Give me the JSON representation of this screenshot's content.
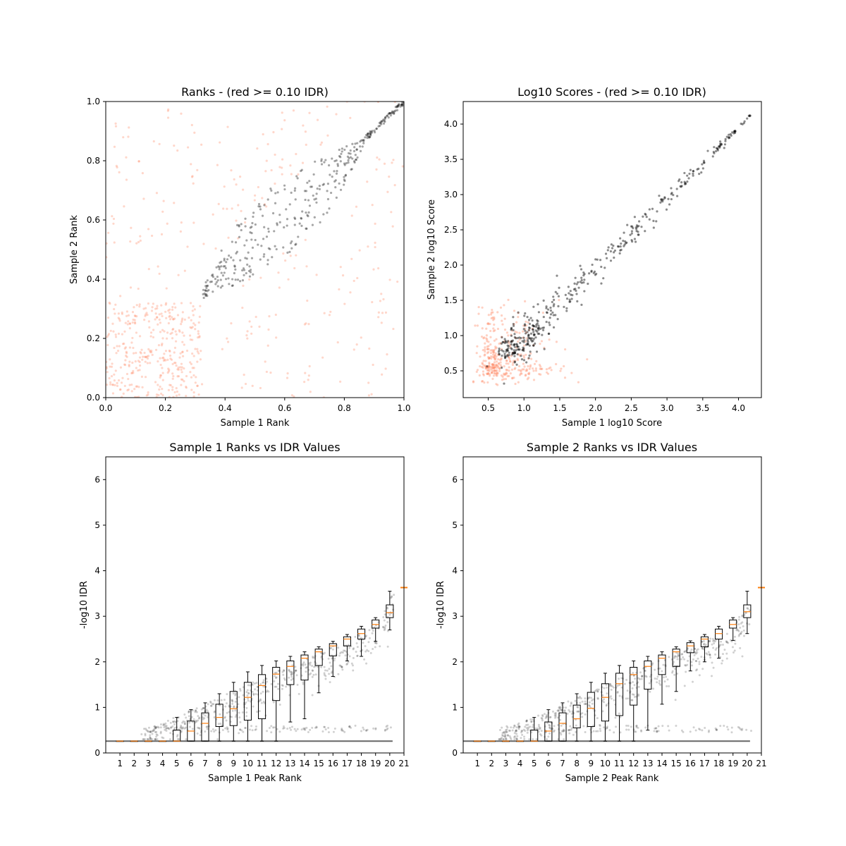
{
  "colors": {
    "pass": "#000000",
    "fail": "#ff8c69",
    "median": "#ff7f0e"
  },
  "chart_data": [
    {
      "type": "scatter",
      "title": "Ranks - (red >= 0.10 IDR)",
      "xlabel": "Sample 1 Rank",
      "ylabel": "Sample 2 Rank",
      "xlim": [
        0,
        1
      ],
      "ylim": [
        0,
        1
      ],
      "xticks": [
        "0.0",
        "0.2",
        "0.4",
        "0.6",
        "0.8",
        "1.0"
      ],
      "yticks": [
        "0.0",
        "0.2",
        "0.4",
        "0.6",
        "0.8",
        "1.0"
      ],
      "grid": false,
      "series": [
        {
          "color": "black",
          "cloud": {
            "shape": "wedge",
            "from": [
              0.32,
              0.33
            ],
            "to": [
              1.0,
              1.0
            ],
            "spread": 0.27,
            "count": 360
          }
        },
        {
          "color": "salmon",
          "cloud": {
            "shape": "background",
            "dense_region": [
              [
                0,
                0.3
              ],
              [
                0,
                0.3
              ]
            ],
            "count": 620
          }
        }
      ]
    },
    {
      "type": "scatter",
      "title": "Log10 Scores - (red >= 0.10 IDR)",
      "xlabel": "Sample 1 log10 Score",
      "ylabel": "Sample 2 log10 Score",
      "xlim": [
        0.15,
        4.32
      ],
      "ylim": [
        0.12,
        4.32
      ],
      "xticks": [
        "0.5",
        "1.0",
        "1.5",
        "2.0",
        "2.5",
        "3.0",
        "3.5",
        "4.0"
      ],
      "yticks": [
        "0.5",
        "1.0",
        "1.5",
        "2.0",
        "2.5",
        "3.0",
        "3.5",
        "4.0"
      ],
      "grid": false,
      "series": [
        {
          "color": "black",
          "cloud": {
            "shape": "diagonal",
            "from": [
              0.77,
              0.77
            ],
            "to": [
              4.12,
              4.12
            ],
            "count": 420
          }
        },
        {
          "color": "salmon",
          "cloud": {
            "shape": "blob",
            "center": [
              0.62,
              0.6
            ],
            "range": [
              [
                0.28,
                2.6
              ],
              [
                0.3,
                2.85
              ]
            ],
            "count": 360
          }
        }
      ]
    },
    {
      "type": "box",
      "title": "Sample 1 Ranks vs IDR Values",
      "xlabel": "Sample 1 Peak Rank",
      "ylabel": "-log10 IDR",
      "xlim": [
        0,
        21
      ],
      "ylim": [
        0,
        6.5
      ],
      "xticks": [
        "1",
        "2",
        "3",
        "4",
        "5",
        "6",
        "7",
        "8",
        "9",
        "10",
        "11",
        "12",
        "13",
        "14",
        "15",
        "16",
        "17",
        "18",
        "19",
        "20",
        "21"
      ],
      "yticks": [
        "0",
        "1",
        "2",
        "3",
        "4",
        "5",
        "6"
      ],
      "boxes": [
        {
          "pos": 1,
          "whislo": 0.26,
          "q1": 0.26,
          "med": 0.26,
          "q3": 0.26,
          "whishi": 0.26
        },
        {
          "pos": 2,
          "whislo": 0.26,
          "q1": 0.26,
          "med": 0.26,
          "q3": 0.26,
          "whishi": 0.26
        },
        {
          "pos": 3,
          "whislo": 0.26,
          "q1": 0.26,
          "med": 0.26,
          "q3": 0.26,
          "whishi": 0.26
        },
        {
          "pos": 4,
          "whislo": 0.26,
          "q1": 0.26,
          "med": 0.26,
          "q3": 0.26,
          "whishi": 0.26
        },
        {
          "pos": 5,
          "whislo": 0.26,
          "q1": 0.26,
          "med": 0.26,
          "q3": 0.5,
          "whishi": 0.78
        },
        {
          "pos": 6,
          "whislo": 0.26,
          "q1": 0.26,
          "med": 0.48,
          "q3": 0.7,
          "whishi": 0.95
        },
        {
          "pos": 7,
          "whislo": 0.26,
          "q1": 0.26,
          "med": 0.65,
          "q3": 0.88,
          "whishi": 1.1
        },
        {
          "pos": 8,
          "whislo": 0.26,
          "q1": 0.58,
          "med": 0.78,
          "q3": 1.07,
          "whishi": 1.3
        },
        {
          "pos": 9,
          "whislo": 0.26,
          "q1": 0.6,
          "med": 0.97,
          "q3": 1.35,
          "whishi": 1.55
        },
        {
          "pos": 10,
          "whislo": 0.26,
          "q1": 0.72,
          "med": 1.22,
          "q3": 1.55,
          "whishi": 1.78
        },
        {
          "pos": 11,
          "whislo": 0.26,
          "q1": 0.75,
          "med": 1.48,
          "q3": 1.72,
          "whishi": 1.92
        },
        {
          "pos": 12,
          "whislo": 0.26,
          "q1": 1.15,
          "med": 1.73,
          "q3": 1.88,
          "whishi": 2.02
        },
        {
          "pos": 13,
          "whislo": 0.68,
          "q1": 1.5,
          "med": 1.9,
          "q3": 2.02,
          "whishi": 2.12
        },
        {
          "pos": 14,
          "whislo": 0.75,
          "q1": 1.6,
          "med": 2.08,
          "q3": 2.15,
          "whishi": 2.22
        },
        {
          "pos": 15,
          "whislo": 1.32,
          "q1": 1.92,
          "med": 2.22,
          "q3": 2.28,
          "whishi": 2.33
        },
        {
          "pos": 16,
          "whislo": 1.68,
          "q1": 2.13,
          "med": 2.35,
          "q3": 2.4,
          "whishi": 2.45
        },
        {
          "pos": 17,
          "whislo": 2.02,
          "q1": 2.35,
          "med": 2.5,
          "q3": 2.55,
          "whishi": 2.6
        },
        {
          "pos": 18,
          "whislo": 2.12,
          "q1": 2.5,
          "med": 2.62,
          "q3": 2.72,
          "whishi": 2.78
        },
        {
          "pos": 19,
          "whislo": 2.45,
          "q1": 2.74,
          "med": 2.82,
          "q3": 2.92,
          "whishi": 2.97
        },
        {
          "pos": 20,
          "whislo": 2.7,
          "q1": 2.97,
          "med": 3.08,
          "q3": 3.25,
          "whishi": 3.55
        }
      ],
      "flier": {
        "x": 21,
        "y": 3.63
      }
    },
    {
      "type": "box",
      "title": "Sample 2 Ranks vs IDR Values",
      "xlabel": "Sample 2 Peak Rank",
      "ylabel": "-log10 IDR",
      "xlim": [
        0,
        21
      ],
      "ylim": [
        0,
        6.5
      ],
      "xticks": [
        "1",
        "2",
        "3",
        "4",
        "5",
        "6",
        "7",
        "8",
        "9",
        "10",
        "11",
        "12",
        "13",
        "14",
        "15",
        "16",
        "17",
        "18",
        "19",
        "20",
        "21"
      ],
      "yticks": [
        "0",
        "1",
        "2",
        "3",
        "4",
        "5",
        "6"
      ],
      "boxes": [
        {
          "pos": 1,
          "whislo": 0.26,
          "q1": 0.26,
          "med": 0.26,
          "q3": 0.26,
          "whishi": 0.26
        },
        {
          "pos": 2,
          "whislo": 0.26,
          "q1": 0.26,
          "med": 0.26,
          "q3": 0.26,
          "whishi": 0.26
        },
        {
          "pos": 3,
          "whislo": 0.26,
          "q1": 0.26,
          "med": 0.26,
          "q3": 0.26,
          "whishi": 0.26
        },
        {
          "pos": 4,
          "whislo": 0.26,
          "q1": 0.26,
          "med": 0.26,
          "q3": 0.26,
          "whishi": 0.26
        },
        {
          "pos": 5,
          "whislo": 0.26,
          "q1": 0.26,
          "med": 0.26,
          "q3": 0.5,
          "whishi": 0.78
        },
        {
          "pos": 6,
          "whislo": 0.26,
          "q1": 0.26,
          "med": 0.48,
          "q3": 0.68,
          "whishi": 0.95
        },
        {
          "pos": 7,
          "whislo": 0.26,
          "q1": 0.26,
          "med": 0.65,
          "q3": 0.88,
          "whishi": 1.1
        },
        {
          "pos": 8,
          "whislo": 0.26,
          "q1": 0.55,
          "med": 0.75,
          "q3": 1.05,
          "whishi": 1.3
        },
        {
          "pos": 9,
          "whislo": 0.26,
          "q1": 0.58,
          "med": 0.98,
          "q3": 1.33,
          "whishi": 1.55
        },
        {
          "pos": 10,
          "whislo": 0.26,
          "q1": 0.7,
          "med": 1.22,
          "q3": 1.52,
          "whishi": 1.75
        },
        {
          "pos": 11,
          "whislo": 0.26,
          "q1": 0.82,
          "med": 1.52,
          "q3": 1.75,
          "whishi": 1.92
        },
        {
          "pos": 12,
          "whislo": 0.26,
          "q1": 1.05,
          "med": 1.72,
          "q3": 1.88,
          "whishi": 2.02
        },
        {
          "pos": 13,
          "whislo": 0.5,
          "q1": 1.4,
          "med": 1.9,
          "q3": 2.02,
          "whishi": 2.12
        },
        {
          "pos": 14,
          "whislo": 1.07,
          "q1": 1.72,
          "med": 2.08,
          "q3": 2.15,
          "whishi": 2.22
        },
        {
          "pos": 15,
          "whislo": 1.35,
          "q1": 1.9,
          "med": 2.22,
          "q3": 2.28,
          "whishi": 2.33
        },
        {
          "pos": 16,
          "whislo": 1.8,
          "q1": 2.2,
          "med": 2.35,
          "q3": 2.42,
          "whishi": 2.46
        },
        {
          "pos": 17,
          "whislo": 2.0,
          "q1": 2.33,
          "med": 2.5,
          "q3": 2.55,
          "whishi": 2.6
        },
        {
          "pos": 18,
          "whislo": 2.08,
          "q1": 2.5,
          "med": 2.62,
          "q3": 2.72,
          "whishi": 2.78
        },
        {
          "pos": 19,
          "whislo": 2.47,
          "q1": 2.74,
          "med": 2.82,
          "q3": 2.92,
          "whishi": 2.97
        },
        {
          "pos": 20,
          "whislo": 2.62,
          "q1": 2.97,
          "med": 3.1,
          "q3": 3.25,
          "whishi": 3.55
        }
      ],
      "flier": {
        "x": 21,
        "y": 3.63
      }
    }
  ]
}
